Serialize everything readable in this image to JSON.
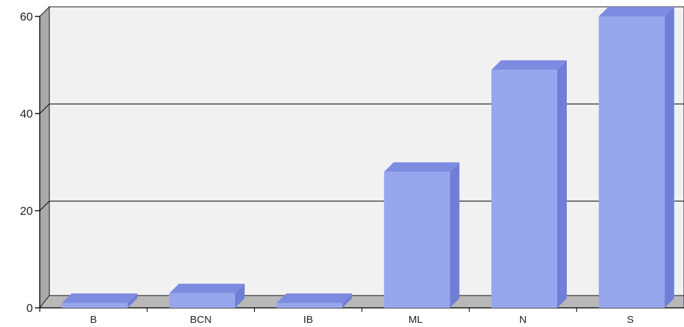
{
  "chart_data": {
    "type": "bar",
    "categories": [
      "B",
      "BCN",
      "IB",
      "ML",
      "N",
      "S"
    ],
    "values": [
      1,
      3,
      1,
      28,
      49,
      60
    ],
    "ylim": [
      0,
      60
    ],
    "yticks": [
      0,
      20,
      40,
      60
    ],
    "yticklabels": [
      "0",
      "20",
      "40",
      "60"
    ],
    "grid": true,
    "legend": "none",
    "three_d": true
  },
  "colors": {
    "bar_front": "#98a6ee",
    "bar_top": "#7d8ce0",
    "bar_side": "#6f7fd6",
    "wall": "#f1f1f1",
    "wall_side": "#a9a9a9",
    "floor": "#b8b8b8",
    "grid": "#222222",
    "axis": "#111111"
  }
}
